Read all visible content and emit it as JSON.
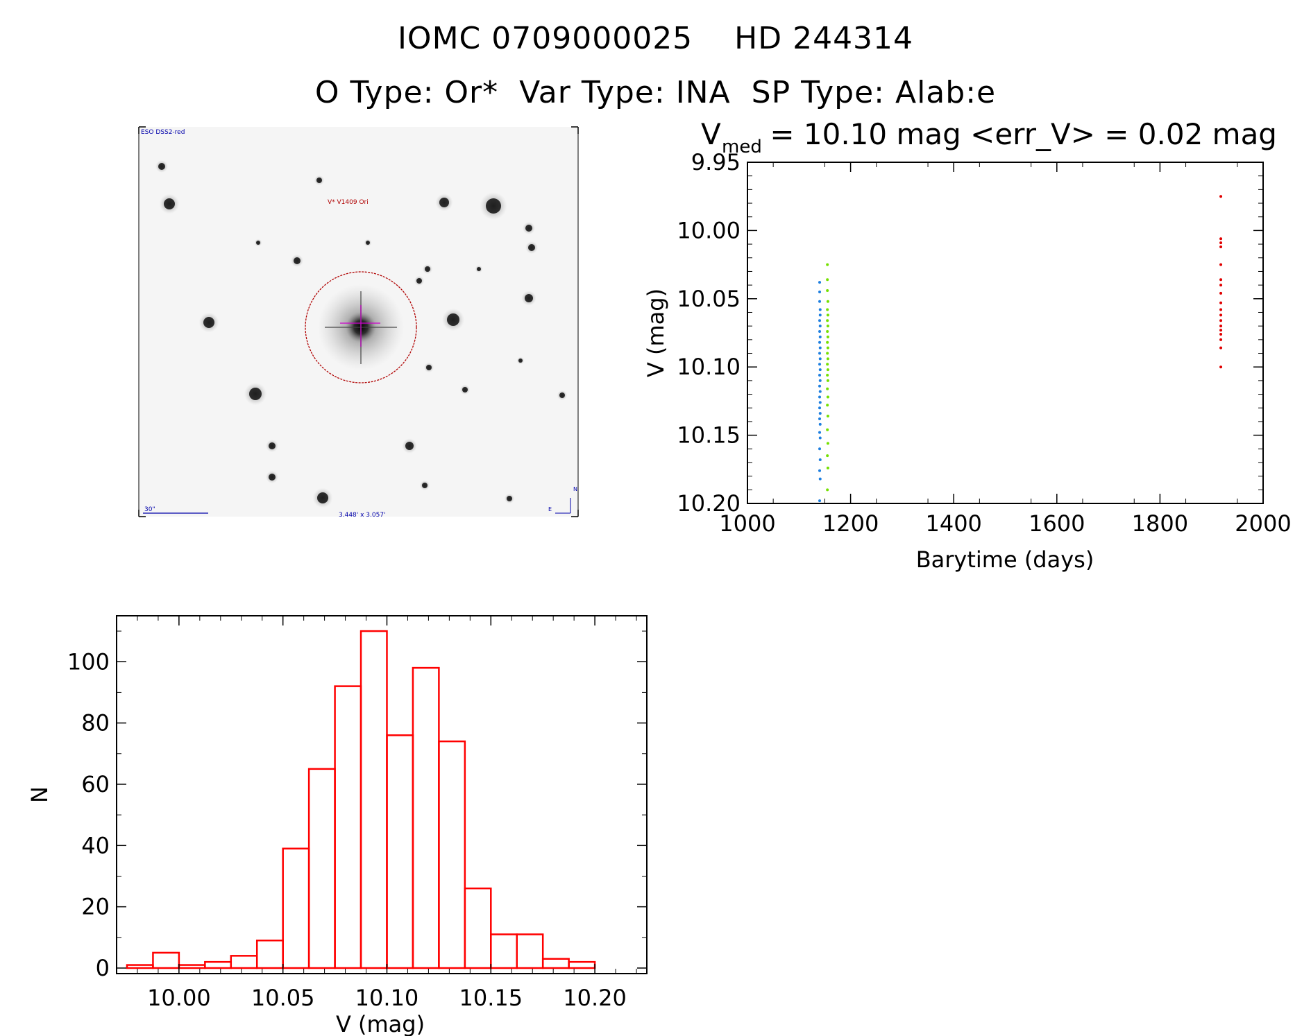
{
  "header": {
    "title": "IOMC 0709000025    HD 244314",
    "subtitle": "O Type: Or*  Var Type: INA  SP Type: Alab:e"
  },
  "finder": {
    "survey_label": "ESO DSS2-red",
    "target_label": "V* V1409 Ori",
    "scale_label": "30\"",
    "fov_label": "3.448' x 3.057'",
    "north_label": "N",
    "east_label": "E"
  },
  "chart_data": [
    {
      "type": "scatter",
      "title_main": "V",
      "title_sub": "med",
      "title_rest": " = 10.10 mag <err_V> = 0.02 mag",
      "xlabel": "Barytime (days)",
      "ylabel": "V (mag)",
      "xlim": [
        1000,
        2000
      ],
      "ylim": [
        10.2,
        9.95
      ],
      "x_ticks": [
        "1000",
        "1200",
        "1400",
        "1600",
        "1800",
        "2000"
      ],
      "y_ticks": [
        "9.95",
        "10.00",
        "10.05",
        "10.10",
        "10.15",
        "10.20"
      ],
      "series": [
        {
          "color": "#1e7fe0",
          "points": [
            [
              1140,
              10.038
            ],
            [
              1140,
              10.045
            ],
            [
              1140,
              10.052
            ],
            [
              1141,
              10.058
            ],
            [
              1141,
              10.062
            ],
            [
              1140,
              10.066
            ],
            [
              1141,
              10.07
            ],
            [
              1140,
              10.074
            ],
            [
              1141,
              10.078
            ],
            [
              1140,
              10.082
            ],
            [
              1141,
              10.086
            ],
            [
              1140,
              10.09
            ],
            [
              1141,
              10.094
            ],
            [
              1140,
              10.098
            ],
            [
              1141,
              10.102
            ],
            [
              1140,
              10.106
            ],
            [
              1141,
              10.11
            ],
            [
              1140,
              10.114
            ],
            [
              1141,
              10.118
            ],
            [
              1140,
              10.122
            ],
            [
              1141,
              10.126
            ],
            [
              1140,
              10.13
            ],
            [
              1141,
              10.134
            ],
            [
              1140,
              10.138
            ],
            [
              1141,
              10.142
            ],
            [
              1140,
              10.148
            ],
            [
              1141,
              10.152
            ],
            [
              1140,
              10.16
            ],
            [
              1141,
              10.168
            ],
            [
              1140,
              10.176
            ],
            [
              1141,
              10.182
            ],
            [
              1140,
              10.198
            ]
          ]
        },
        {
          "color": "#74e000",
          "points": [
            [
              1155,
              10.025
            ],
            [
              1155,
              10.036
            ],
            [
              1155,
              10.044
            ],
            [
              1156,
              10.052
            ],
            [
              1155,
              10.058
            ],
            [
              1156,
              10.062
            ],
            [
              1155,
              10.066
            ],
            [
              1156,
              10.07
            ],
            [
              1155,
              10.074
            ],
            [
              1156,
              10.078
            ],
            [
              1155,
              10.082
            ],
            [
              1156,
              10.086
            ],
            [
              1155,
              10.09
            ],
            [
              1156,
              10.094
            ],
            [
              1155,
              10.098
            ],
            [
              1156,
              10.102
            ],
            [
              1155,
              10.106
            ],
            [
              1156,
              10.11
            ],
            [
              1155,
              10.116
            ],
            [
              1156,
              10.122
            ],
            [
              1155,
              10.128
            ],
            [
              1156,
              10.136
            ],
            [
              1155,
              10.146
            ],
            [
              1156,
              10.156
            ],
            [
              1155,
              10.165
            ],
            [
              1156,
              10.174
            ],
            [
              1155,
              10.19
            ]
          ]
        },
        {
          "color": "#e00000",
          "points": [
            [
              1918,
              9.975
            ],
            [
              1918,
              10.006
            ],
            [
              1918,
              10.009
            ],
            [
              1918,
              10.012
            ],
            [
              1918,
              10.025
            ],
            [
              1918,
              10.036
            ],
            [
              1918,
              10.04
            ],
            [
              1918,
              10.046
            ],
            [
              1918,
              10.053
            ],
            [
              1918,
              10.058
            ],
            [
              1918,
              10.062
            ],
            [
              1918,
              10.066
            ],
            [
              1918,
              10.07
            ],
            [
              1918,
              10.073
            ],
            [
              1918,
              10.076
            ],
            [
              1918,
              10.08
            ],
            [
              1918,
              10.086
            ],
            [
              1918,
              10.1
            ]
          ]
        }
      ]
    },
    {
      "type": "bar",
      "subtype": "histogram",
      "xlabel": "V (mag)",
      "ylabel": "N",
      "xlim": [
        9.97,
        10.225
      ],
      "ylim": [
        0,
        115
      ],
      "x_ticks": [
        "10.00",
        "10.05",
        "10.10",
        "10.15",
        "10.20"
      ],
      "y_ticks": [
        "0",
        "20",
        "40",
        "60",
        "80",
        "100"
      ],
      "bin_width": 0.0125,
      "color": "#ff0000",
      "bins": [
        {
          "x0": 9.975,
          "count": 1
        },
        {
          "x0": 9.9875,
          "count": 5
        },
        {
          "x0": 10.0,
          "count": 1
        },
        {
          "x0": 10.0125,
          "count": 2
        },
        {
          "x0": 10.025,
          "count": 4
        },
        {
          "x0": 10.0375,
          "count": 9
        },
        {
          "x0": 10.05,
          "count": 39
        },
        {
          "x0": 10.0625,
          "count": 65
        },
        {
          "x0": 10.075,
          "count": 92
        },
        {
          "x0": 10.0875,
          "count": 110
        },
        {
          "x0": 10.1,
          "count": 76
        },
        {
          "x0": 10.1125,
          "count": 98
        },
        {
          "x0": 10.125,
          "count": 74
        },
        {
          "x0": 10.1375,
          "count": 26
        },
        {
          "x0": 10.15,
          "count": 11
        },
        {
          "x0": 10.1625,
          "count": 11
        },
        {
          "x0": 10.175,
          "count": 3
        },
        {
          "x0": 10.1875,
          "count": 2
        }
      ]
    }
  ]
}
